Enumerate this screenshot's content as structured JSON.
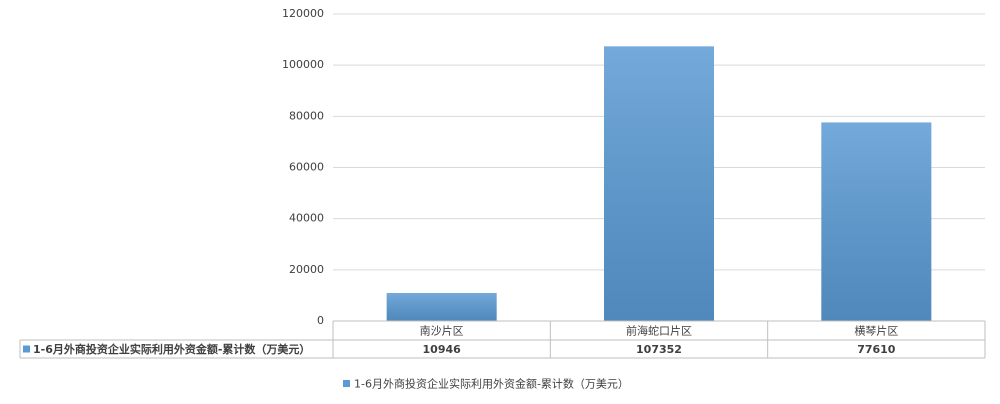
{
  "chart_data": {
    "type": "bar",
    "categories": [
      "南沙片区",
      "前海蛇口片区",
      "横琴片区"
    ],
    "series": [
      {
        "name": "1-6月外商投资企业实际利用外资金额-累计数（万美元）",
        "color": "#5b9bd5",
        "values": [
          10946,
          107352,
          77610
        ]
      }
    ],
    "ylim": [
      0,
      120000
    ],
    "yticks": [
      0,
      20000,
      40000,
      60000,
      80000,
      100000,
      120000
    ],
    "grid": true,
    "data_table": true,
    "legend": "bottom"
  }
}
